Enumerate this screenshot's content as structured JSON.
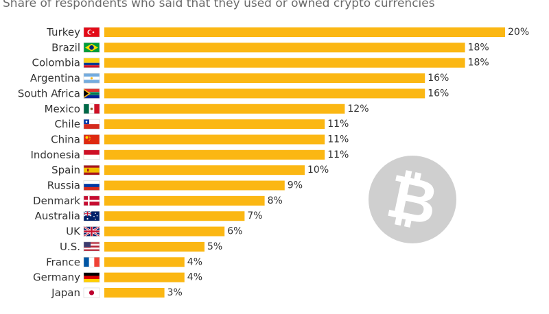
{
  "subtitle": "Share of respondents who said that they used or owned crypto currencies",
  "colors": {
    "bar": "#fbb713",
    "label": "#333333",
    "value": "#333333",
    "bitcoin_circle": "#cfcfcf",
    "bitcoin_glyph": "#ffffff"
  },
  "decoration": {
    "icon": "bitcoin-icon",
    "glyph": "₿"
  },
  "chart_data": {
    "type": "bar",
    "orientation": "horizontal",
    "title": "",
    "subtitle": "Share of respondents who said that they used or owned crypto currencies",
    "xlabel": "",
    "ylabel": "",
    "xlim": [
      0,
      20
    ],
    "grid": false,
    "legend": "none",
    "value_suffix": "%",
    "categories": [
      "Turkey",
      "Brazil",
      "Colombia",
      "Argentina",
      "South Africa",
      "Mexico",
      "Chile",
      "China",
      "Indonesia",
      "Spain",
      "Russia",
      "Denmark",
      "Australia",
      "UK",
      "U.S.",
      "France",
      "Germany",
      "Japan"
    ],
    "flags": [
      "turkey",
      "brazil",
      "colombia",
      "argentina",
      "south-africa",
      "mexico",
      "chile",
      "china",
      "indonesia",
      "spain",
      "russia",
      "denmark",
      "australia",
      "uk",
      "us",
      "france",
      "germany",
      "japan"
    ],
    "values": [
      20,
      18,
      18,
      16,
      16,
      12,
      11,
      11,
      11,
      10,
      9,
      8,
      7,
      6,
      5,
      4,
      4,
      3
    ]
  }
}
